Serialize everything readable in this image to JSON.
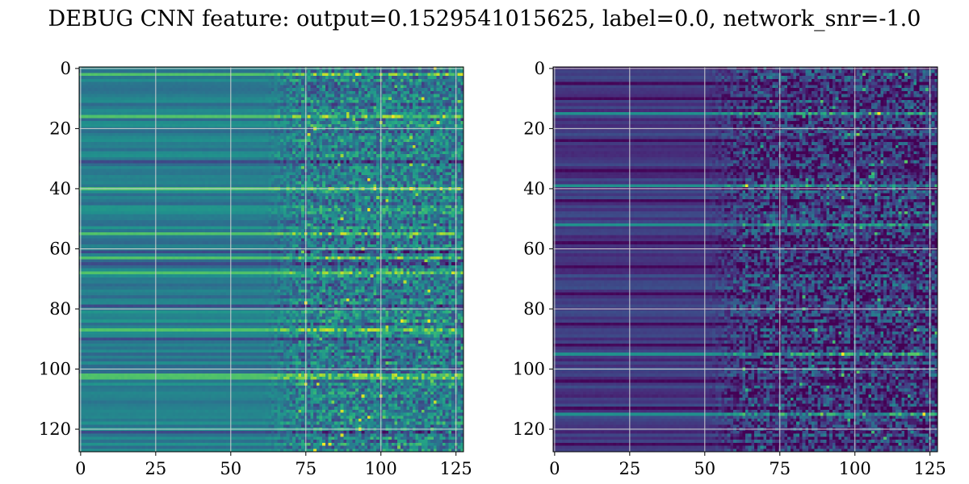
{
  "chart_data": {
    "type": "heatmap",
    "suptitle": "DEBUG CNN feature: output=0.1529541015625, label=0.0, network_snr=-1.0",
    "colormap": "viridis",
    "grid": true,
    "panels": [
      {
        "rows": 128,
        "cols": 128,
        "xlim": [
          0,
          127
        ],
        "ylim": [
          127,
          0
        ],
        "xticks": [
          "0",
          "25",
          "50",
          "75",
          "100",
          "125"
        ],
        "yticks": [
          "0",
          "20",
          "40",
          "60",
          "80",
          "100",
          "120"
        ],
        "value_range": [
          0,
          1
        ],
        "base_level": 0.43,
        "row_spread": 0.09,
        "noise_onset_col": 72,
        "noise_amplitude": 0.22,
        "bright_rows": [
          2,
          16,
          40,
          55,
          63,
          68,
          87,
          102,
          103
        ],
        "bright_row_level": 0.72,
        "dark_rows": [
          31,
          61,
          65,
          79,
          90,
          121
        ]
      },
      {
        "rows": 128,
        "cols": 128,
        "xlim": [
          0,
          127
        ],
        "ylim": [
          127,
          0
        ],
        "xticks": [
          "0",
          "25",
          "50",
          "75",
          "100",
          "125"
        ],
        "yticks": [
          "0",
          "20",
          "40",
          "60",
          "80",
          "100",
          "120"
        ],
        "value_range": [
          0,
          1
        ],
        "base_level": 0.17,
        "row_spread": 0.07,
        "noise_onset_col": 62,
        "noise_amplitude": 0.24,
        "bright_rows": [
          15,
          39,
          52,
          95,
          115
        ],
        "bright_row_level": 0.5,
        "dark_rows": [
          5,
          10,
          24,
          34,
          44,
          58,
          66,
          75,
          85,
          92,
          104,
          113,
          125
        ]
      }
    ]
  }
}
